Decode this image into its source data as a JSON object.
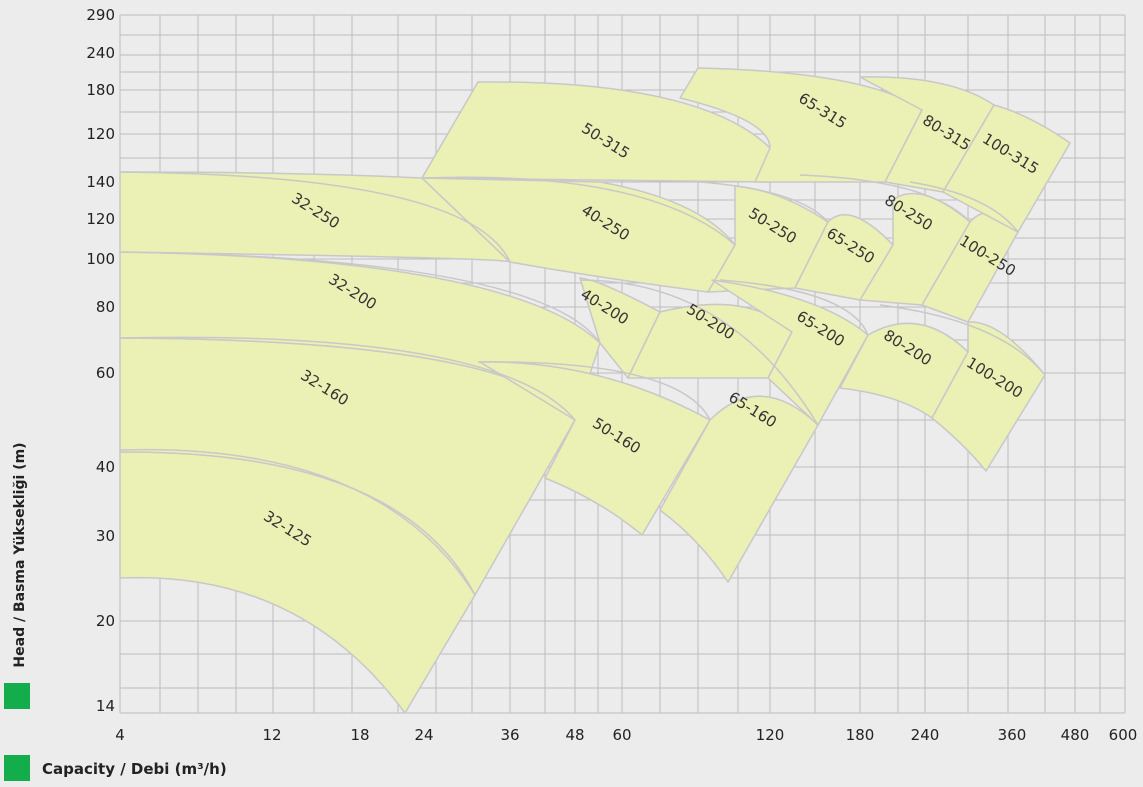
{
  "chart_data": {
    "type": "area",
    "title": "",
    "xlabel": "Capacity / Debi (m³/h)",
    "ylabel": "Head / Basma Yüksekliği (m)",
    "x_scale": "log",
    "y_scale": "log",
    "grid": true,
    "legend": "bottom-left",
    "x_ticks": [
      "4",
      "12",
      "18",
      "24",
      "36",
      "48",
      "60",
      "120",
      "180",
      "240",
      "360",
      "480",
      "600"
    ],
    "y_ticks_upper": [
      "290",
      "240",
      "180",
      "120"
    ],
    "y_ticks_lower": [
      "140",
      "120",
      "100",
      "80",
      "60",
      "40",
      "30",
      "20",
      "14"
    ],
    "pump_models": [
      {
        "name": "32-125",
        "q_range": [
          4,
          30
        ],
        "head_range": [
          14,
          42
        ]
      },
      {
        "name": "32-160",
        "q_range": [
          4,
          50
        ],
        "head_range": [
          23,
          70
        ]
      },
      {
        "name": "32-200",
        "q_range": [
          4,
          60
        ],
        "head_range": [
          50,
          103
        ]
      },
      {
        "name": "32-250",
        "q_range": [
          4,
          36
        ],
        "head_range": [
          100,
          145
        ]
      },
      {
        "name": "40-200",
        "q_range": [
          48,
          70
        ],
        "head_range": [
          60,
          90
        ]
      },
      {
        "name": "40-250",
        "q_range": [
          24,
          100
        ],
        "head_range": [
          100,
          145
        ]
      },
      {
        "name": "50-160",
        "q_range": [
          40,
          100
        ],
        "head_range": [
          30,
          70
        ]
      },
      {
        "name": "50-200",
        "q_range": [
          55,
          130
        ],
        "head_range": [
          60,
          90
        ]
      },
      {
        "name": "50-250",
        "q_range": [
          100,
          150
        ],
        "head_range": [
          90,
          140
        ]
      },
      {
        "name": "50-315",
        "q_range": [
          24,
          120
        ],
        "head_range": [
          135,
          190
        ]
      },
      {
        "name": "65-160",
        "q_range": [
          60,
          150
        ],
        "head_range": [
          24,
          70
        ]
      },
      {
        "name": "65-200",
        "q_range": [
          90,
          200
        ],
        "head_range": [
          55,
          90
        ]
      },
      {
        "name": "65-250",
        "q_range": [
          140,
          200
        ],
        "head_range": [
          85,
          140
        ]
      },
      {
        "name": "65-315",
        "q_range": [
          90,
          250
        ],
        "head_range": [
          140,
          240
        ]
      },
      {
        "name": "80-200",
        "q_range": [
          150,
          350
        ],
        "head_range": [
          47,
          80
        ]
      },
      {
        "name": "80-250",
        "q_range": [
          200,
          350
        ],
        "head_range": [
          80,
          140
        ]
      },
      {
        "name": "80-315",
        "q_range": [
          210,
          350
        ],
        "head_range": [
          140,
          230
        ]
      },
      {
        "name": "100-200",
        "q_range": [
          250,
          400
        ],
        "head_range": [
          38,
          80
        ]
      },
      {
        "name": "100-250",
        "q_range": [
          250,
          370
        ],
        "head_range": [
          80,
          130
        ]
      },
      {
        "name": "100-315",
        "q_range": [
          280,
          480
        ],
        "head_range": [
          140,
          200
        ]
      }
    ]
  },
  "colors": {
    "region_fill": "#ebf0b5",
    "region_stroke": "#c8c8c8",
    "grid": "#bdbdbd",
    "background": "#ececec",
    "legend_square": "#13ad4b"
  }
}
